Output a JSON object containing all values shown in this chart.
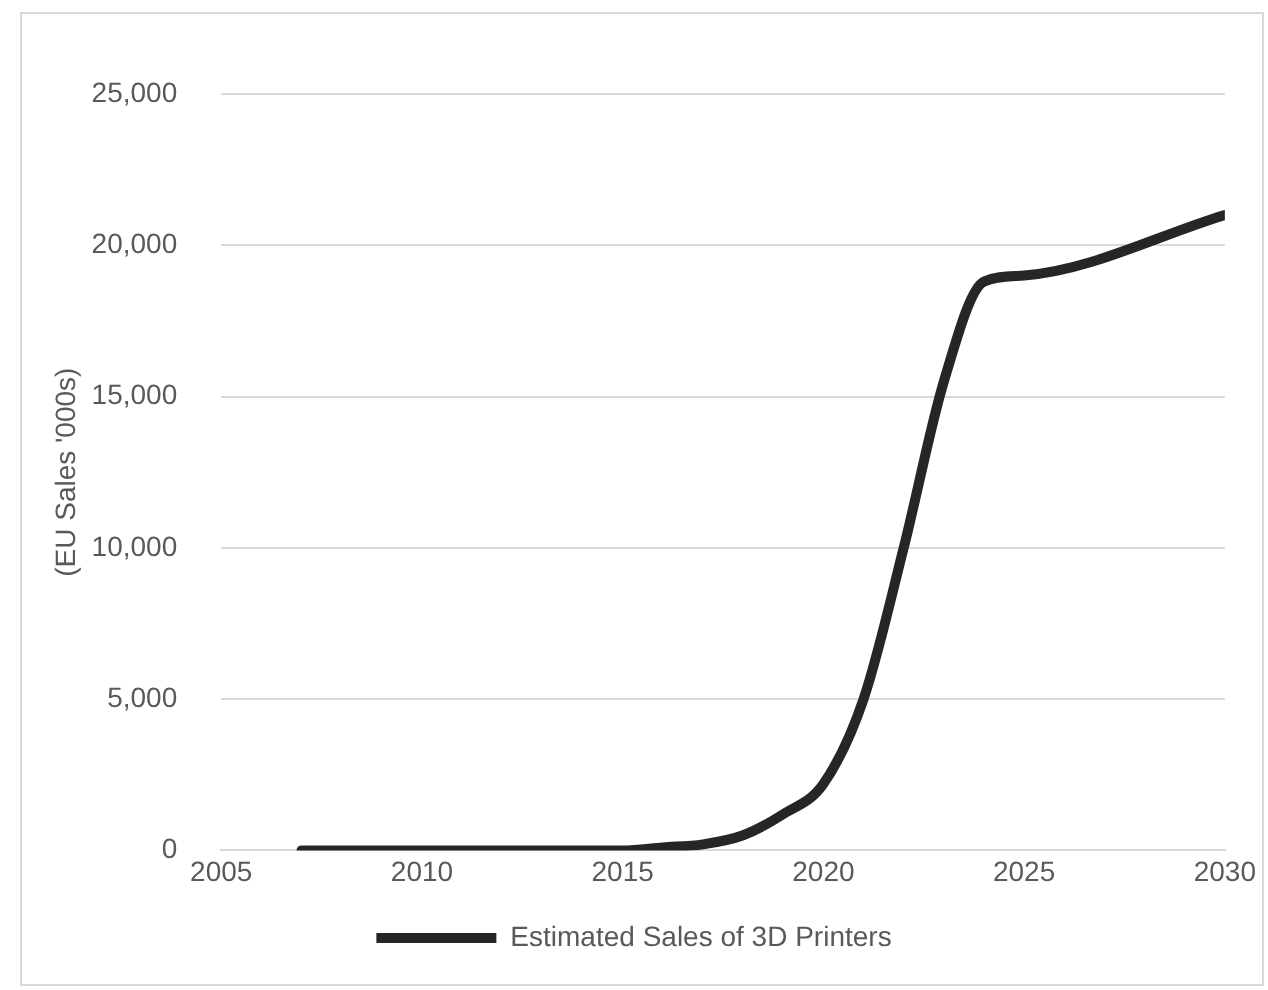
{
  "chart_data": {
    "type": "line",
    "ylabel": "(EU Sales '000s)",
    "x": [
      2007,
      2010,
      2015,
      2016,
      2017,
      2018,
      2019,
      2020,
      2021,
      2022,
      2023,
      2024,
      2025,
      2030
    ],
    "series": [
      {
        "name": "Estimated Sales of 3D Printers",
        "color": "#262626",
        "values": [
          0,
          0,
          0,
          100,
          200,
          500,
          1200,
          2200,
          5000,
          10000,
          15500,
          18800,
          19000,
          21000
        ]
      }
    ],
    "xlim": [
      2005,
      2030
    ],
    "xticks": [
      2005,
      2010,
      2015,
      2020,
      2025,
      2030
    ],
    "ylim": [
      0,
      25000
    ],
    "yticks": [
      0,
      {
        "value": 5000,
        "label": "5,000"
      },
      {
        "value": 10000,
        "label": "10,000"
      },
      {
        "value": 15000,
        "label": "15,000"
      },
      {
        "value": 20000,
        "label": "20,000"
      },
      {
        "value": 25000,
        "label": "25,000"
      }
    ],
    "grid": "y",
    "legend": "bottom",
    "marker": "none",
    "line_style": "solid"
  }
}
